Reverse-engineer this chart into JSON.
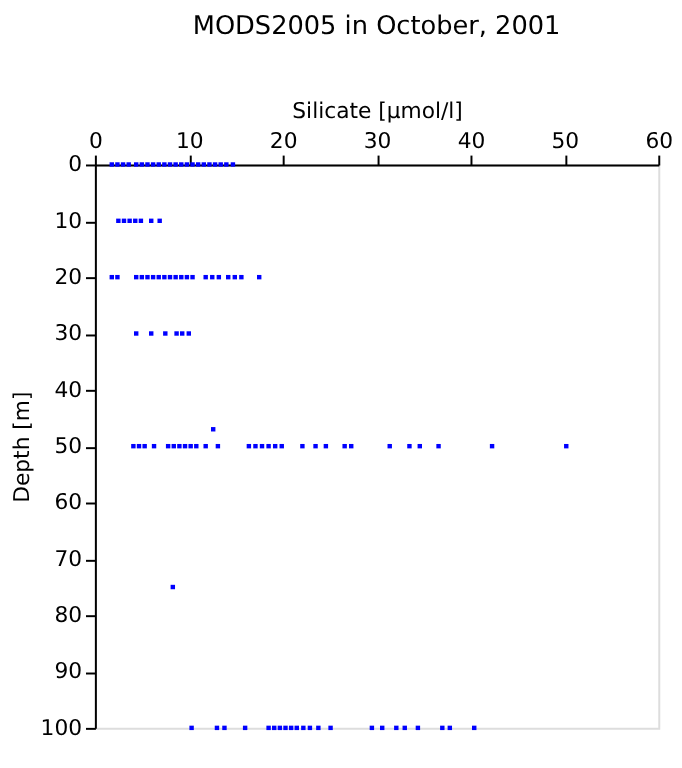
{
  "chart_data": {
    "type": "scatter",
    "title": "MODS2005 in October, 2001",
    "xlabel": "Silicate [µmol/l]",
    "ylabel": "Depth [m]",
    "xlim": [
      0,
      60
    ],
    "xticks": [
      0,
      10,
      20,
      30,
      40,
      50,
      60
    ],
    "ylim": [
      100,
      0
    ],
    "yticks": [
      0,
      10,
      20,
      30,
      40,
      50,
      60,
      70,
      80,
      90,
      100
    ],
    "grid": false,
    "marker": "square",
    "legend": false,
    "series": [
      {
        "color": "#0000ff",
        "x": [
          1.8,
          2.4,
          3.0,
          3.6,
          4.4,
          5.0,
          5.6,
          6.2,
          6.8,
          7.4,
          8.0,
          8.6,
          9.2,
          9.8,
          10.4,
          11.0,
          11.6,
          12.2,
          12.8,
          13.4,
          14.0,
          14.7,
          2.5,
          3.1,
          3.7,
          4.3,
          4.9,
          6.0,
          6.9,
          1.8,
          2.4,
          4.4,
          5.0,
          5.6,
          6.2,
          6.8,
          7.4,
          8.0,
          8.6,
          9.2,
          9.8,
          10.4,
          11.8,
          12.5,
          13.2,
          14.2,
          14.9,
          15.6,
          17.5,
          4.4,
          6.0,
          7.5,
          8.7,
          9.3,
          10.0,
          12.6,
          4.1,
          4.7,
          5.3,
          6.3,
          7.8,
          8.4,
          9.0,
          9.6,
          10.2,
          10.8,
          11.8,
          13.1,
          16.4,
          17.1,
          17.8,
          18.5,
          19.2,
          19.9,
          22.1,
          23.5,
          24.6,
          26.6,
          27.3,
          31.4,
          33.5,
          34.6,
          36.6,
          42.3,
          50.2,
          8.3,
          10.3,
          13.0,
          13.8,
          16.0,
          18.5,
          19.1,
          19.7,
          20.3,
          20.9,
          21.5,
          22.2,
          22.9,
          23.8,
          25.1,
          29.5,
          30.6,
          32.1,
          33.0,
          34.4,
          37.0,
          37.8,
          40.4
        ],
        "values": [
          0,
          0,
          0,
          0,
          0,
          0,
          0,
          0,
          0,
          0,
          0,
          0,
          0,
          0,
          0,
          0,
          0,
          0,
          0,
          0,
          0,
          0,
          10,
          10,
          10,
          10,
          10,
          10,
          10,
          20,
          20,
          20,
          20,
          20,
          20,
          20,
          20,
          20,
          20,
          20,
          20,
          20,
          20,
          20,
          20,
          20,
          20,
          20,
          20,
          30,
          30,
          30,
          30,
          30,
          30,
          47,
          50,
          50,
          50,
          50,
          50,
          50,
          50,
          50,
          50,
          50,
          50,
          50,
          50,
          50,
          50,
          50,
          50,
          50,
          50,
          50,
          50,
          50,
          50,
          50,
          50,
          50,
          50,
          50,
          50,
          75,
          100,
          100,
          100,
          100,
          100,
          100,
          100,
          100,
          100,
          100,
          100,
          100,
          100,
          100,
          100,
          100,
          100,
          100,
          100,
          100,
          100,
          100
        ]
      }
    ]
  }
}
